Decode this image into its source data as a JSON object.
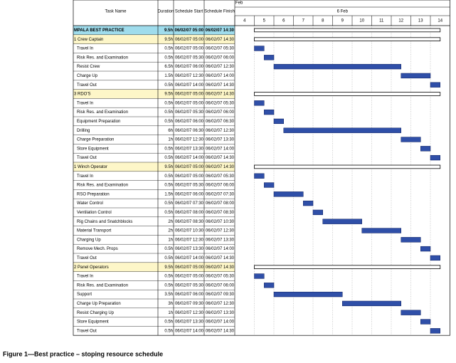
{
  "header": {
    "columns": [
      "Task Name",
      "Duration",
      "Schedule Start",
      "Schedule Finish"
    ]
  },
  "timeline": {
    "month": "Feb",
    "day": "6 Feb",
    "hours": [
      4,
      5,
      6,
      7,
      8,
      9,
      10,
      11,
      12,
      13,
      14
    ]
  },
  "rows": [
    {
      "kind": "project",
      "name": "MPALA BEST PRACTICE",
      "duration": "9.5h",
      "start": "06/02/07 05:00",
      "finish": "06/02/07 14:30"
    },
    {
      "kind": "group",
      "name": "1 Crew Captain",
      "duration": "9.5h",
      "start": "06/02/07 05:00",
      "finish": "06/02/07 14:30"
    },
    {
      "kind": "task",
      "name": "Travel In",
      "duration": "0.5h",
      "start": "06/02/07 05:00",
      "finish": "06/02/07 05:30"
    },
    {
      "kind": "task",
      "name": "Risk Res. and Examination",
      "duration": "0.5h",
      "start": "06/02/07 05:30",
      "finish": "06/02/07 06:00"
    },
    {
      "kind": "task",
      "name": "Resist Crew",
      "duration": "6.5h",
      "start": "06/02/07 06:00",
      "finish": "06/02/07 12:30"
    },
    {
      "kind": "task",
      "name": "Charge Up",
      "duration": "1.5h",
      "start": "06/02/07 12:30",
      "finish": "06/02/07 14:00"
    },
    {
      "kind": "task",
      "name": "Travel Out",
      "duration": "0.5h",
      "start": "06/02/07 14:00",
      "finish": "06/02/07 14:30"
    },
    {
      "kind": "group",
      "name": "3 RDO'S",
      "duration": "9.5h",
      "start": "06/02/07 05:00",
      "finish": "06/02/07 14:30"
    },
    {
      "kind": "task",
      "name": "Travel In",
      "duration": "0.5h",
      "start": "06/02/07 05:00",
      "finish": "06/02/07 05:30"
    },
    {
      "kind": "task",
      "name": "Risk Res. and Examination",
      "duration": "0.5h",
      "start": "06/02/07 05:30",
      "finish": "06/02/07 06:00"
    },
    {
      "kind": "task",
      "name": "Equipment Preparation",
      "duration": "0.5h",
      "start": "06/02/07 06:00",
      "finish": "06/02/07 06:30"
    },
    {
      "kind": "task",
      "name": "Drilling",
      "duration": "6h",
      "start": "06/02/07 06:30",
      "finish": "06/02/07 12:30"
    },
    {
      "kind": "task",
      "name": "Charge Preparation",
      "duration": "1h",
      "start": "06/02/07 12:30",
      "finish": "06/02/07 13:30"
    },
    {
      "kind": "task",
      "name": "Store Equipment",
      "duration": "0.5h",
      "start": "06/02/07 13:30",
      "finish": "06/02/07 14:00"
    },
    {
      "kind": "task",
      "name": "Travel Out",
      "duration": "0.5h",
      "start": "06/02/07 14:00",
      "finish": "06/02/07 14:30"
    },
    {
      "kind": "group",
      "name": "1 Winch Operator",
      "duration": "9.5h",
      "start": "06/02/07 05:00",
      "finish": "06/02/07 14:30"
    },
    {
      "kind": "task",
      "name": "Travel In",
      "duration": "0.5h",
      "start": "06/02/07 05:00",
      "finish": "06/02/07 05:30"
    },
    {
      "kind": "task",
      "name": "Risk Res. and Examination",
      "duration": "0.5h",
      "start": "06/02/07 05:30",
      "finish": "06/02/07 06:00"
    },
    {
      "kind": "task",
      "name": "RSO Preparation",
      "duration": "1.5h",
      "start": "06/02/07 06:00",
      "finish": "06/02/07 07:30"
    },
    {
      "kind": "task",
      "name": "Water Control",
      "duration": "0.5h",
      "start": "06/02/07 07:30",
      "finish": "06/02/07 08:00"
    },
    {
      "kind": "task",
      "name": "Ventilation Control",
      "duration": "0.5h",
      "start": "06/02/07 08:00",
      "finish": "06/02/07 08:30"
    },
    {
      "kind": "task",
      "name": "Rig Chains and Snatchblocks",
      "duration": "2h",
      "start": "06/02/07 08:30",
      "finish": "06/02/07 10:30"
    },
    {
      "kind": "task",
      "name": "Material Transport",
      "duration": "2h",
      "start": "06/02/07 10:30",
      "finish": "06/02/07 12:30"
    },
    {
      "kind": "task",
      "name": "Charging Up",
      "duration": "1h",
      "start": "06/02/07 12:30",
      "finish": "06/02/07 13:30"
    },
    {
      "kind": "task",
      "name": "Remove Mech. Props",
      "duration": "0.5h",
      "start": "06/02/07 13:30",
      "finish": "06/02/07 14:00"
    },
    {
      "kind": "task",
      "name": "Travel Out",
      "duration": "0.5h",
      "start": "06/02/07 14:00",
      "finish": "06/02/07 14:30"
    },
    {
      "kind": "group",
      "name": "2 Panel Operators",
      "duration": "9.5h",
      "start": "06/02/07 05:00",
      "finish": "06/02/07 14:30"
    },
    {
      "kind": "task",
      "name": "Travel In",
      "duration": "0.5h",
      "start": "06/02/07 05:00",
      "finish": "06/02/07 05:30"
    },
    {
      "kind": "task",
      "name": "Risk Res. and Examination",
      "duration": "0.5h",
      "start": "06/02/07 05:30",
      "finish": "06/02/07 06:00"
    },
    {
      "kind": "task",
      "name": "Support",
      "duration": "3.5h",
      "start": "06/02/07 06:00",
      "finish": "06/02/07 09:30"
    },
    {
      "kind": "task",
      "name": "Charge Up Preparation",
      "duration": "3h",
      "start": "06/02/07 09:30",
      "finish": "06/02/07 12:30"
    },
    {
      "kind": "task",
      "name": "Resist Charging Up",
      "duration": "1h",
      "start": "06/02/07 12:30",
      "finish": "06/02/07 13:30"
    },
    {
      "kind": "task",
      "name": "Store Equipment",
      "duration": "0.5h",
      "start": "06/02/07 13:30",
      "finish": "06/02/07 14:00"
    },
    {
      "kind": "task",
      "name": "Travel Out",
      "duration": "0.5h",
      "start": "06/02/07 14:00",
      "finish": "06/02/07 14:30"
    }
  ],
  "caption": "Figure 1—Best practice – stoping resource schedule"
}
